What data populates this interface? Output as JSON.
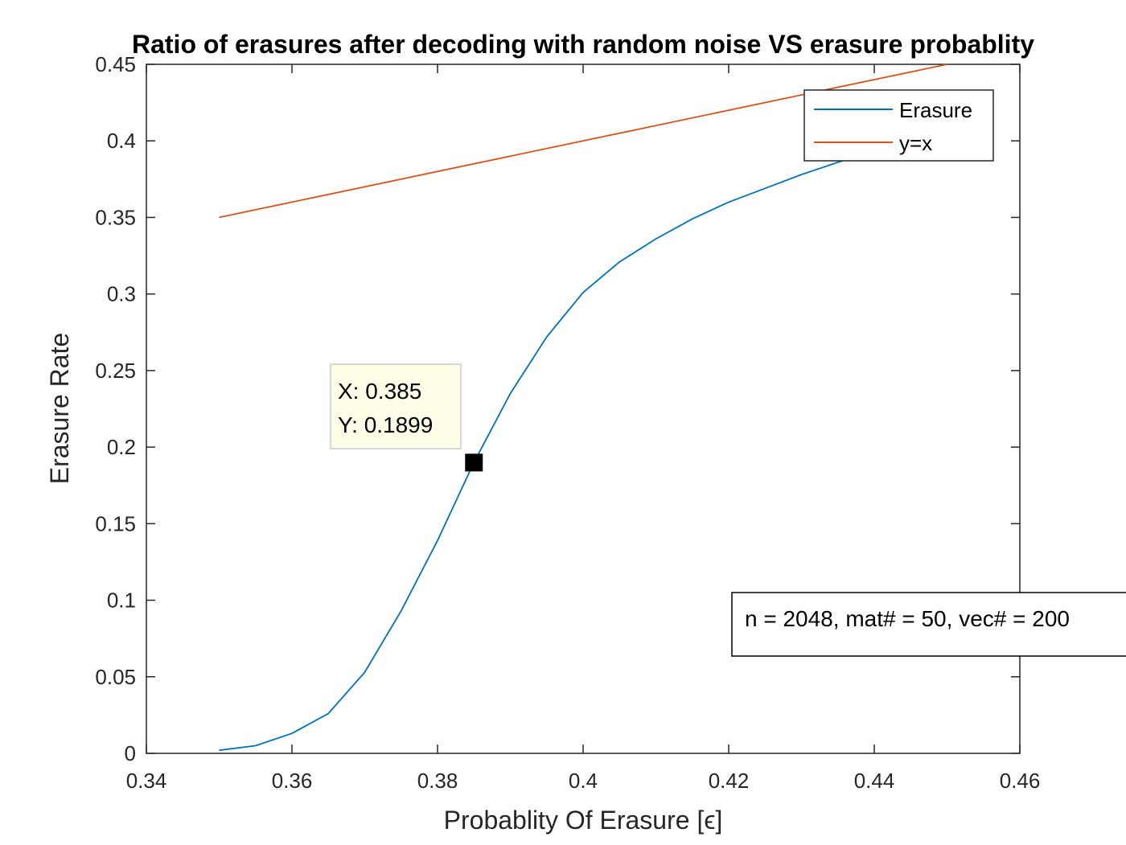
{
  "chart_data": {
    "type": "line",
    "title": "Ratio of erasures after decoding with random noise VS erasure probablity",
    "xlabel": "Probablity Of Erasure [ϵ]",
    "ylabel": "Erasure Rate",
    "xlim": [
      0.34,
      0.46
    ],
    "ylim": [
      0,
      0.45
    ],
    "xticks": [
      0.34,
      0.36,
      0.38,
      0.4,
      0.42,
      0.44,
      0.46
    ],
    "xtick_labels": [
      "0.34",
      "0.36",
      "0.38",
      "0.4",
      "0.42",
      "0.44",
      "0.46"
    ],
    "yticks": [
      0,
      0.05,
      0.1,
      0.15,
      0.2,
      0.25,
      0.3,
      0.35,
      0.4,
      0.45
    ],
    "ytick_labels": [
      "0",
      "0.05",
      "0.1",
      "0.15",
      "0.2",
      "0.25",
      "0.3",
      "0.35",
      "0.4",
      "0.45"
    ],
    "grid": false,
    "legend_position": "top-right",
    "series": [
      {
        "name": "Erasure",
        "color": "#0072BD",
        "x": [
          0.35,
          0.355,
          0.36,
          0.365,
          0.37,
          0.375,
          0.38,
          0.385,
          0.39,
          0.395,
          0.4,
          0.405,
          0.41,
          0.415,
          0.42,
          0.425,
          0.43,
          0.435,
          0.44,
          0.445
        ],
        "y": [
          0.002,
          0.005,
          0.013,
          0.026,
          0.053,
          0.093,
          0.139,
          0.1899,
          0.235,
          0.272,
          0.301,
          0.321,
          0.336,
          0.349,
          0.36,
          0.369,
          0.378,
          0.386,
          0.394,
          0.401
        ]
      },
      {
        "name": "y=x",
        "color": "#D95319",
        "x": [
          0.35,
          0.45
        ],
        "y": [
          0.35,
          0.45
        ]
      }
    ],
    "datatip": {
      "x": 0.385,
      "y": 0.1899,
      "line1": "X: 0.385",
      "line2": "Y: 0.1899"
    },
    "annotation": "n = 2048, mat# = 50, vec# = 200"
  }
}
